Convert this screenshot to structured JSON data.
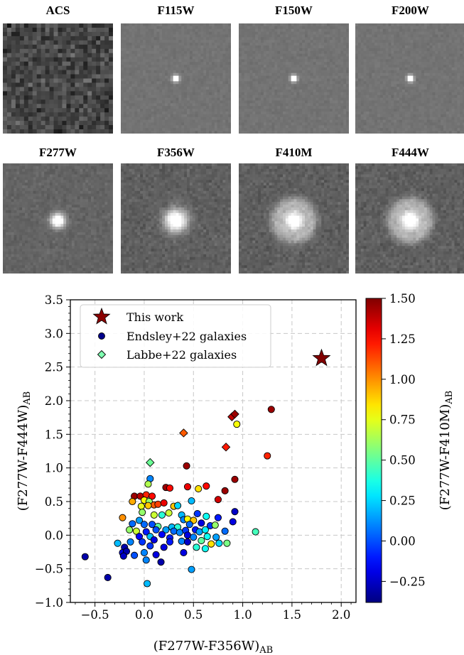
{
  "stamps": [
    {
      "label": "ACS",
      "style": "noise",
      "source": 0
    },
    {
      "label": "F115W",
      "style": "point",
      "source": 1
    },
    {
      "label": "F150W",
      "style": "point",
      "source": 1
    },
    {
      "label": "F200W",
      "style": "point",
      "source": 1
    },
    {
      "label": "F277W",
      "style": "point",
      "source": 2
    },
    {
      "label": "F356W",
      "style": "point",
      "source": 3
    },
    {
      "label": "F410M",
      "style": "ring",
      "source": 3
    },
    {
      "label": "F444W",
      "style": "ring",
      "source": 3
    }
  ],
  "chart_data": {
    "type": "scatter",
    "xlabel": "(F277W-F356W)",
    "xlabel_sub": "AB",
    "ylabel": "(F277W-F444W)",
    "ylabel_sub": "AB",
    "colorbar_label": "(F277W-F410M)",
    "colorbar_label_sub": "AB",
    "xlim": [
      -0.75,
      2.15
    ],
    "ylim": [
      -1.0,
      3.5
    ],
    "xticks": [
      "−0.5",
      "0.0",
      "0.5",
      "1.0",
      "1.5",
      "2.0"
    ],
    "xtick_values": [
      -0.5,
      0.0,
      0.5,
      1.0,
      1.5,
      2.0
    ],
    "yticks": [
      "−1.0",
      "−0.5",
      "0.0",
      "0.5",
      "1.0",
      "1.5",
      "2.0",
      "2.5",
      "3.0",
      "3.5"
    ],
    "ytick_values": [
      -1.0,
      -0.5,
      0.0,
      0.5,
      1.0,
      1.5,
      2.0,
      2.5,
      3.0,
      3.5
    ],
    "clim": [
      -0.38,
      1.5
    ],
    "cticks": [
      "−0.25",
      "0.00",
      "0.25",
      "0.50",
      "0.75",
      "1.00",
      "1.25",
      "1.50"
    ],
    "ctick_values": [
      -0.25,
      0.0,
      0.25,
      0.5,
      0.75,
      1.0,
      1.25,
      1.5
    ],
    "grid": true,
    "legend_position": "top-left",
    "legend": [
      {
        "label": "This work",
        "marker": "star",
        "color": "#8b0000"
      },
      {
        "label": "Endsley+22 galaxies",
        "marker": "circle",
        "color": "#00008b"
      },
      {
        "label": "Labbe+22 galaxies",
        "marker": "diamond",
        "color": "#7fffb0"
      }
    ],
    "series": [
      {
        "name": "This work",
        "marker": "star",
        "points": [
          {
            "x": 1.8,
            "y": 2.63,
            "c": 1.5
          }
        ]
      },
      {
        "name": "Labbe+22 galaxies",
        "marker": "diamond",
        "points": [
          {
            "x": 0.06,
            "y": 1.08,
            "c": 0.52
          },
          {
            "x": 0.4,
            "y": 1.52,
            "c": 1.1
          },
          {
            "x": 0.83,
            "y": 1.31,
            "c": 1.22
          },
          {
            "x": 0.89,
            "y": 1.76,
            "c": 1.38
          },
          {
            "x": 0.92,
            "y": 1.8,
            "c": 1.45
          }
        ]
      },
      {
        "name": "Endsley+22 galaxies",
        "marker": "circle",
        "points": [
          {
            "x": 1.29,
            "y": 1.87,
            "c": 1.45
          },
          {
            "x": 0.94,
            "y": 1.65,
            "c": 0.78
          },
          {
            "x": 1.25,
            "y": 1.18,
            "c": 1.2
          },
          {
            "x": 0.43,
            "y": 1.03,
            "c": 1.45
          },
          {
            "x": 0.06,
            "y": 0.84,
            "c": 0.1
          },
          {
            "x": 0.92,
            "y": 0.83,
            "c": 1.45
          },
          {
            "x": 0.04,
            "y": 0.76,
            "c": 0.65
          },
          {
            "x": 0.22,
            "y": 0.71,
            "c": 1.45
          },
          {
            "x": 0.26,
            "y": 0.7,
            "c": 1.25
          },
          {
            "x": 0.44,
            "y": 0.72,
            "c": 1.3
          },
          {
            "x": 0.63,
            "y": 0.73,
            "c": 1.25
          },
          {
            "x": 0.55,
            "y": 0.69,
            "c": 0.85
          },
          {
            "x": 0.82,
            "y": 0.66,
            "c": 1.45
          },
          {
            "x": -0.1,
            "y": 0.58,
            "c": 1.45
          },
          {
            "x": -0.04,
            "y": 0.58,
            "c": 1.4
          },
          {
            "x": 0.02,
            "y": 0.6,
            "c": 1.2
          },
          {
            "x": 0.08,
            "y": 0.58,
            "c": 1.25
          },
          {
            "x": -0.12,
            "y": 0.5,
            "c": 0.95
          },
          {
            "x": 0.0,
            "y": 0.52,
            "c": 0.8
          },
          {
            "x": 0.05,
            "y": 0.5,
            "c": 0.6
          },
          {
            "x": 0.1,
            "y": 0.45,
            "c": 1.1
          },
          {
            "x": 0.14,
            "y": 0.46,
            "c": 1.15
          },
          {
            "x": 0.2,
            "y": 0.48,
            "c": 1.3
          },
          {
            "x": 0.04,
            "y": 0.44,
            "c": 0.9
          },
          {
            "x": -0.03,
            "y": 0.43,
            "c": 0.75
          },
          {
            "x": 0.3,
            "y": 0.43,
            "c": 0.9
          },
          {
            "x": 0.34,
            "y": 0.44,
            "c": 0.25
          },
          {
            "x": 0.48,
            "y": 0.51,
            "c": 0.2
          },
          {
            "x": 0.75,
            "y": 0.53,
            "c": 1.35
          },
          {
            "x": -0.02,
            "y": 0.34,
            "c": 0.6
          },
          {
            "x": 0.1,
            "y": 0.3,
            "c": 0.7
          },
          {
            "x": 0.25,
            "y": 0.33,
            "c": 0.7
          },
          {
            "x": 0.18,
            "y": 0.3,
            "c": 0.4
          },
          {
            "x": 0.38,
            "y": 0.3,
            "c": 0.2
          },
          {
            "x": 0.54,
            "y": 0.32,
            "c": -0.05
          },
          {
            "x": 0.63,
            "y": 0.28,
            "c": 0.35
          },
          {
            "x": 0.75,
            "y": 0.26,
            "c": -0.1
          },
          {
            "x": 0.92,
            "y": 0.35,
            "c": -0.25
          },
          {
            "x": -0.22,
            "y": 0.26,
            "c": 1.0
          },
          {
            "x": -0.05,
            "y": 0.22,
            "c": 0.15
          },
          {
            "x": 0.4,
            "y": 0.23,
            "c": 0.1
          },
          {
            "x": 0.44,
            "y": 0.24,
            "c": 0.8
          },
          {
            "x": 0.5,
            "y": 0.22,
            "c": 0.9
          },
          {
            "x": 0.58,
            "y": 0.18,
            "c": -0.2
          },
          {
            "x": 0.9,
            "y": 0.2,
            "c": -0.2
          },
          {
            "x": -0.12,
            "y": 0.17,
            "c": 0.05
          },
          {
            "x": 0.0,
            "y": 0.16,
            "c": 0.05
          },
          {
            "x": 0.08,
            "y": 0.16,
            "c": 0.0
          },
          {
            "x": 0.14,
            "y": 0.13,
            "c": 0.5
          },
          {
            "x": 0.28,
            "y": 0.12,
            "c": 0.2
          },
          {
            "x": 0.34,
            "y": 0.12,
            "c": 0.4
          },
          {
            "x": 0.46,
            "y": 0.16,
            "c": 0.05
          },
          {
            "x": 0.67,
            "y": 0.14,
            "c": -0.05
          },
          {
            "x": 0.72,
            "y": 0.15,
            "c": 0.6
          },
          {
            "x": -0.15,
            "y": 0.08,
            "c": 0.6
          },
          {
            "x": -0.08,
            "y": 0.06,
            "c": 0.7
          },
          {
            "x": 0.02,
            "y": 0.05,
            "c": -0.1
          },
          {
            "x": 0.12,
            "y": 0.08,
            "c": 0.0
          },
          {
            "x": 0.22,
            "y": 0.08,
            "c": 0.15
          },
          {
            "x": 0.3,
            "y": 0.06,
            "c": 0.05
          },
          {
            "x": 0.36,
            "y": 0.04,
            "c": 0.1
          },
          {
            "x": 0.42,
            "y": 0.07,
            "c": -0.05
          },
          {
            "x": 0.52,
            "y": 0.08,
            "c": -0.1
          },
          {
            "x": 0.56,
            "y": 0.05,
            "c": 0.15
          },
          {
            "x": 0.62,
            "y": 0.08,
            "c": 0.3
          },
          {
            "x": 0.82,
            "y": 0.06,
            "c": 0.05
          },
          {
            "x": 1.13,
            "y": 0.05,
            "c": 0.45
          },
          {
            "x": -0.05,
            "y": -0.02,
            "c": -0.15
          },
          {
            "x": 0.06,
            "y": -0.02,
            "c": 0.2
          },
          {
            "x": 0.18,
            "y": 0.01,
            "c": -0.15
          },
          {
            "x": 0.26,
            "y": -0.04,
            "c": -0.1
          },
          {
            "x": 0.44,
            "y": 0.0,
            "c": -0.2
          },
          {
            "x": 0.5,
            "y": -0.03,
            "c": 0.1
          },
          {
            "x": 0.64,
            "y": -0.02,
            "c": 0.35
          },
          {
            "x": 0.73,
            "y": -0.03,
            "c": 0.15
          },
          {
            "x": -0.27,
            "y": -0.12,
            "c": 0.2
          },
          {
            "x": -0.14,
            "y": -0.1,
            "c": 0.1
          },
          {
            "x": -0.02,
            "y": -0.1,
            "c": -0.05
          },
          {
            "x": 0.1,
            "y": -0.07,
            "c": -0.2
          },
          {
            "x": 0.26,
            "y": -0.1,
            "c": -0.1
          },
          {
            "x": 0.38,
            "y": -0.09,
            "c": 0.1
          },
          {
            "x": 0.44,
            "y": -0.1,
            "c": -0.25
          },
          {
            "x": 0.58,
            "y": -0.08,
            "c": 0.5
          },
          {
            "x": 0.68,
            "y": -0.13,
            "c": 0.85
          },
          {
            "x": 0.76,
            "y": -0.12,
            "c": 0.25
          },
          {
            "x": 0.84,
            "y": -0.12,
            "c": 0.55
          },
          {
            "x": -0.2,
            "y": -0.18,
            "c": -0.3
          },
          {
            "x": 0.06,
            "y": -0.16,
            "c": -0.05
          },
          {
            "x": 0.2,
            "y": -0.18,
            "c": -0.2
          },
          {
            "x": 0.53,
            "y": -0.18,
            "c": 0.4
          },
          {
            "x": 0.62,
            "y": -0.2,
            "c": 0.35
          },
          {
            "x": -0.22,
            "y": -0.26,
            "c": -0.2
          },
          {
            "x": -0.18,
            "y": -0.24,
            "c": -0.3
          },
          {
            "x": 0.0,
            "y": -0.26,
            "c": 0.1
          },
          {
            "x": 0.4,
            "y": -0.26,
            "c": -0.2
          },
          {
            "x": -0.6,
            "y": -0.32,
            "c": -0.3
          },
          {
            "x": -0.21,
            "y": -0.31,
            "c": -0.25
          },
          {
            "x": -0.1,
            "y": -0.3,
            "c": 0.0
          },
          {
            "x": 0.12,
            "y": -0.29,
            "c": -0.2
          },
          {
            "x": 0.02,
            "y": -0.37,
            "c": 0.1
          },
          {
            "x": 0.17,
            "y": -0.4,
            "c": -0.3
          },
          {
            "x": 0.48,
            "y": -0.51,
            "c": 0.15
          },
          {
            "x": -0.37,
            "y": -0.63,
            "c": -0.3
          },
          {
            "x": 0.03,
            "y": -0.72,
            "c": 0.2
          }
        ]
      }
    ]
  }
}
